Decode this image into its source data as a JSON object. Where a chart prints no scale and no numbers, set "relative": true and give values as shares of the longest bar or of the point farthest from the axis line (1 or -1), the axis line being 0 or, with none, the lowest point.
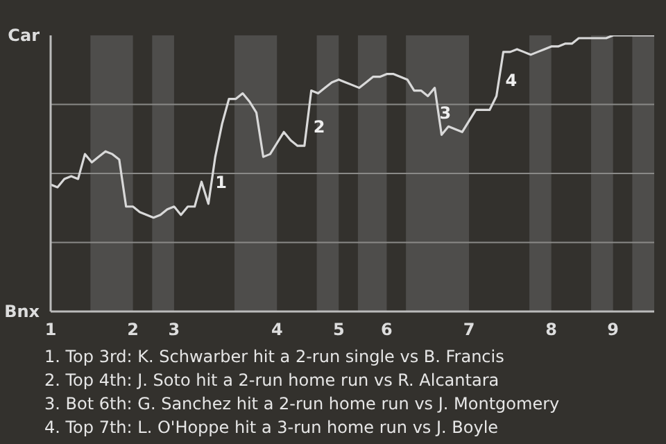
{
  "chart_data": {
    "type": "line",
    "relative": true,
    "categories": [
      "1",
      null,
      null,
      null,
      null,
      null,
      null,
      null,
      null,
      null,
      null,
      null,
      "2",
      null,
      null,
      null,
      null,
      null,
      "3",
      null,
      null,
      null,
      null,
      null,
      null,
      null,
      null,
      null,
      null,
      null,
      null,
      null,
      null,
      "4",
      null,
      null,
      null,
      null,
      null,
      null,
      null,
      null,
      "5",
      null,
      null,
      null,
      null,
      null,
      null,
      "6",
      null,
      null,
      null,
      null,
      null,
      null,
      null,
      null,
      null,
      null,
      null,
      "7",
      null,
      null,
      null,
      null,
      null,
      null,
      null,
      null,
      null,
      null,
      null,
      "8",
      null,
      null,
      null,
      null,
      null,
      null,
      null,
      null,
      "9",
      null,
      null,
      null,
      null,
      null,
      null
    ],
    "series": [
      {
        "color": "#d9d9d9",
        "values": [
          0.46,
          0.45,
          0.48,
          0.49,
          0.48,
          0.57,
          0.54,
          0.56,
          0.58,
          0.57,
          0.55,
          0.38,
          0.38,
          0.36,
          0.35,
          0.34,
          0.35,
          0.37,
          0.38,
          0.35,
          0.38,
          0.38,
          0.47,
          0.39,
          0.56,
          0.68,
          0.77,
          0.77,
          0.79,
          0.76,
          0.72,
          0.56,
          0.57,
          0.61,
          0.65,
          0.62,
          0.6,
          0.6,
          0.8,
          0.79,
          0.81,
          0.83,
          0.84,
          0.83,
          0.82,
          0.81,
          0.83,
          0.85,
          0.85,
          0.86,
          0.86,
          0.85,
          0.84,
          0.8,
          0.8,
          0.78,
          0.81,
          0.64,
          0.67,
          0.66,
          0.65,
          0.69,
          0.73,
          0.73,
          0.73,
          0.78,
          0.94,
          0.94,
          0.95,
          0.94,
          0.93,
          0.94,
          0.95,
          0.96,
          0.96,
          0.97,
          0.97,
          0.99,
          0.99,
          0.99,
          0.99,
          0.99,
          1.0,
          1.0,
          1.0,
          1.0,
          1.0,
          1.0,
          1.0
        ]
      }
    ],
    "line_style": "solid",
    "ref_lines": [
      {
        "axis": "y",
        "value": 0.25,
        "color": "#8a8a88"
      },
      {
        "axis": "y",
        "value": 0.5,
        "color": "#8a8a88"
      },
      {
        "axis": "y",
        "value": 0.75,
        "color": "#8a8a88"
      }
    ],
    "annotations": [
      "Car",
      "Bnx",
      "1",
      "2",
      "3",
      "4",
      "1. Top 3rd: K. Schwarber hit a 2-run single vs B. Francis",
      "2. Top 4th: J. Soto hit a 2-run home run vs R. Alcantara",
      "3. Bot 6th: G. Sanchez hit a 2-run home run vs J. Montgomery",
      "4. Top 7th: L. O'Hoppe hit a 3-run home run vs J. Boyle"
    ]
  }
}
